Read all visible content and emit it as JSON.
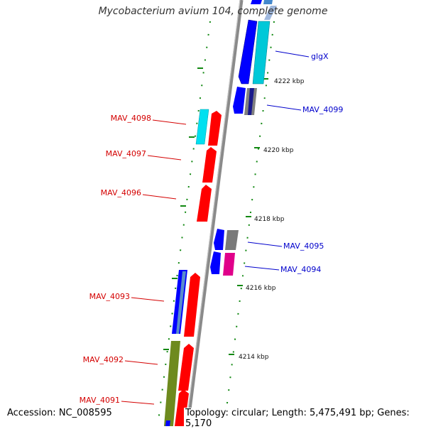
{
  "title": "Mycobacterium avium 104, complete genome",
  "footer": {
    "accession": "Accession: NC_008595",
    "topology": "Topology: circular; Length: 5,475,491 bp; Genes: 5,170"
  },
  "ruler_labels": [
    "4222 kbp",
    "4220 kbp",
    "4218 kbp",
    "4216 kbp",
    "4214 kbp"
  ],
  "gene_labels_left": [
    {
      "text": "MAV_4098",
      "color": "#d40000"
    },
    {
      "text": "MAV_4097",
      "color": "#d40000"
    },
    {
      "text": "MAV_4096",
      "color": "#d40000"
    },
    {
      "text": "MAV_4093",
      "color": "#d40000"
    },
    {
      "text": "MAV_4092",
      "color": "#d40000"
    },
    {
      "text": "MAV_4091",
      "color": "#d40000"
    }
  ],
  "gene_labels_right": [
    {
      "text": "glgX",
      "color": "#0000cc"
    },
    {
      "text": "MAV_4099",
      "color": "#0000cc"
    },
    {
      "text": "MAV_4095",
      "color": "#0000cc"
    },
    {
      "text": "MAV_4094",
      "color": "#0000cc"
    }
  ],
  "colors": {
    "backbone": "#8a8a8a",
    "forward_gene": "#ff0000",
    "reverse_gene": "#0000ff",
    "cyan_gene": "#00c8d8",
    "gray_gene": "#808080",
    "magenta_gene": "#e0008a",
    "olive_gene": "#6e8a1e",
    "tick_dots": "#118811"
  }
}
